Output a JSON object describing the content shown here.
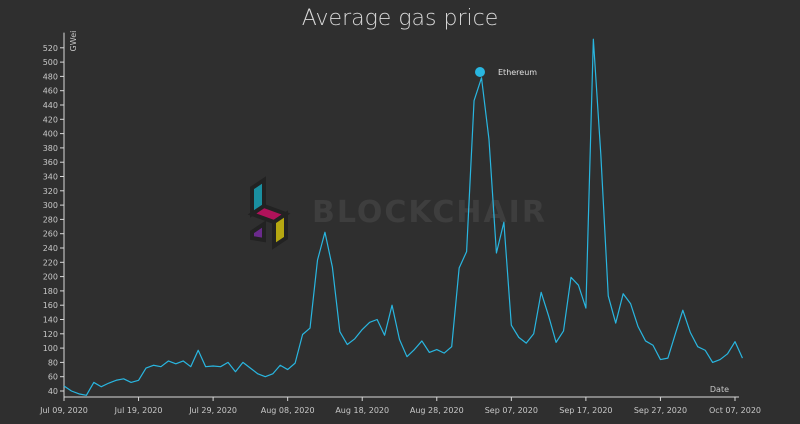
{
  "chart_data": {
    "type": "line",
    "title": "Average gas price",
    "ylabel": "GWei",
    "xlabel": "Date",
    "ylim": [
      40,
      530
    ],
    "yticks": [
      40,
      60,
      80,
      100,
      120,
      140,
      160,
      180,
      200,
      220,
      240,
      260,
      280,
      300,
      320,
      340,
      360,
      380,
      400,
      420,
      440,
      460,
      480,
      500,
      520
    ],
    "xticks": [
      {
        "day": 0,
        "label": "Jul 09, 2020"
      },
      {
        "day": 10,
        "label": "Jul 19, 2020"
      },
      {
        "day": 20,
        "label": "Jul 29, 2020"
      },
      {
        "day": 30,
        "label": "Aug 08, 2020"
      },
      {
        "day": 40,
        "label": "Aug 18, 2020"
      },
      {
        "day": 50,
        "label": "Aug 28, 2020"
      },
      {
        "day": 60,
        "label": "Sep 07, 2020"
      },
      {
        "day": 70,
        "label": "Sep 17, 2020"
      },
      {
        "day": 80,
        "label": "Sep 27, 2020"
      },
      {
        "day": 90,
        "label": "Oct 07, 2020"
      }
    ],
    "grid": false,
    "legend": "top-right",
    "series": [
      {
        "name": "Ethereum",
        "color": "#29b6e0",
        "values": [
          47,
          40,
          36,
          34,
          52,
          46,
          51,
          55,
          57,
          52,
          55,
          72,
          76,
          74,
          82,
          78,
          82,
          74,
          97,
          74,
          75,
          74,
          80,
          67,
          80,
          72,
          64,
          60,
          64,
          76,
          70,
          79,
          119,
          128,
          223,
          262,
          213,
          123,
          105,
          113,
          126,
          136,
          140,
          118,
          160,
          112,
          88,
          98,
          110,
          94,
          98,
          93,
          102,
          212,
          235,
          446,
          478,
          392,
          233,
          276,
          132,
          115,
          107,
          120,
          178,
          145,
          108,
          124,
          199,
          188,
          156,
          532,
          371,
          173,
          135,
          176,
          162,
          130,
          110,
          104,
          84,
          86,
          120,
          153,
          122,
          102,
          97,
          80,
          84,
          92,
          109,
          86
        ]
      }
    ]
  },
  "watermark": {
    "text": "BLOCKCHAIR",
    "colors": [
      "#1a8fa0",
      "#b0125a",
      "#b5a711",
      "#6a2a8c"
    ]
  }
}
